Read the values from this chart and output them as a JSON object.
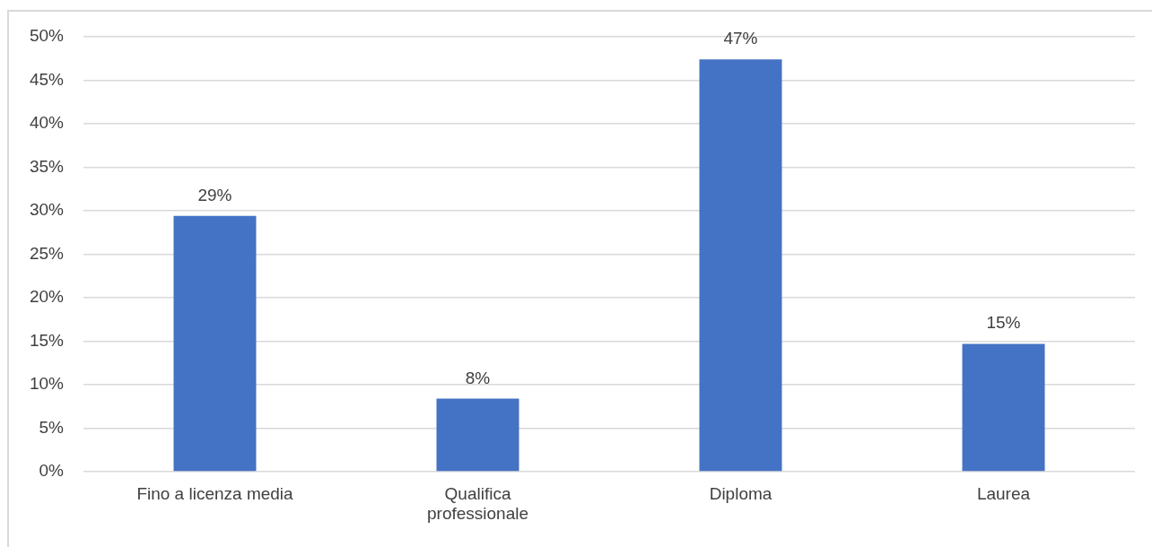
{
  "chart_data": {
    "type": "bar",
    "categories": [
      "Fino a licenza media",
      "Qualifica professionale",
      "Diploma",
      "Laurea"
    ],
    "values": [
      29.4,
      8.4,
      47.4,
      14.7
    ],
    "value_labels": [
      "29%",
      "8%",
      "47%",
      "15%"
    ],
    "color": "#4472c4",
    "ylim": [
      0,
      50
    ],
    "yticks": [
      {
        "value": 0,
        "label": "0%"
      },
      {
        "value": 5,
        "label": "5%"
      },
      {
        "value": 10,
        "label": "10%"
      },
      {
        "value": 15,
        "label": "15%"
      },
      {
        "value": 20,
        "label": "20%"
      },
      {
        "value": 25,
        "label": "25%"
      },
      {
        "value": 30,
        "label": "30%"
      },
      {
        "value": 35,
        "label": "35%"
      },
      {
        "value": 40,
        "label": "40%"
      },
      {
        "value": 45,
        "label": "45%"
      },
      {
        "value": 50,
        "label": "50%"
      }
    ],
    "grid": "y"
  }
}
